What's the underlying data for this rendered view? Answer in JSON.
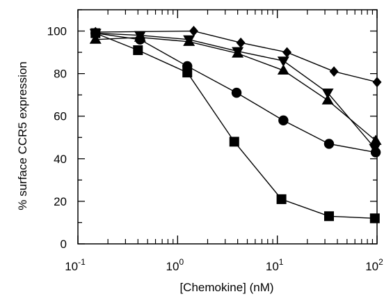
{
  "chart_data": {
    "type": "scatter",
    "title": "",
    "xlabel": "[Chemokine] (nM)",
    "ylabel": "% surface CCR5 expression",
    "x_scale": "log",
    "xlim": [
      0.1,
      100
    ],
    "ylim": [
      0,
      110
    ],
    "grid": false,
    "legend": "none",
    "x_ticks": [
      {
        "base": "10",
        "exp": "-1"
      },
      {
        "base": "10",
        "exp": "0"
      },
      {
        "base": "10",
        "exp": "1"
      },
      {
        "base": "10",
        "exp": "2"
      }
    ],
    "y_ticks": [
      "0",
      "20",
      "40",
      "60",
      "80",
      "100"
    ],
    "y_tick_values": [
      0,
      20,
      40,
      60,
      80,
      100
    ],
    "series": [
      {
        "marker": "square",
        "points": [
          [
            0.15,
            99
          ],
          [
            0.4,
            91
          ],
          [
            1.25,
            80.5
          ],
          [
            3.7,
            48
          ],
          [
            11,
            21
          ],
          [
            33,
            13
          ],
          [
            95,
            12
          ]
        ]
      },
      {
        "marker": "circle",
        "points": [
          [
            0.15,
            99
          ],
          [
            0.42,
            96
          ],
          [
            1.25,
            83.5
          ],
          [
            3.9,
            71
          ],
          [
            11.5,
            58
          ],
          [
            33,
            47
          ],
          [
            97,
            43
          ]
        ]
      },
      {
        "marker": "triangle-up",
        "points": [
          [
            0.15,
            96
          ],
          [
            0.42,
            97
          ],
          [
            1.3,
            95
          ],
          [
            4.0,
            89.5
          ],
          [
            11.5,
            81.5
          ],
          [
            32,
            67.5
          ],
          [
            97,
            48.5
          ]
        ]
      },
      {
        "marker": "triangle-down",
        "points": [
          [
            0.15,
            99
          ],
          [
            0.42,
            98
          ],
          [
            1.3,
            96
          ],
          [
            4.0,
            90.5
          ],
          [
            11.5,
            86
          ],
          [
            32,
            71
          ],
          [
            95,
            45
          ]
        ]
      },
      {
        "marker": "diamond",
        "points": [
          [
            0.15,
            99.5
          ],
          [
            1.45,
            100
          ],
          [
            4.3,
            94.5
          ],
          [
            12.5,
            90
          ],
          [
            37,
            81
          ],
          [
            100,
            76
          ]
        ]
      }
    ]
  }
}
